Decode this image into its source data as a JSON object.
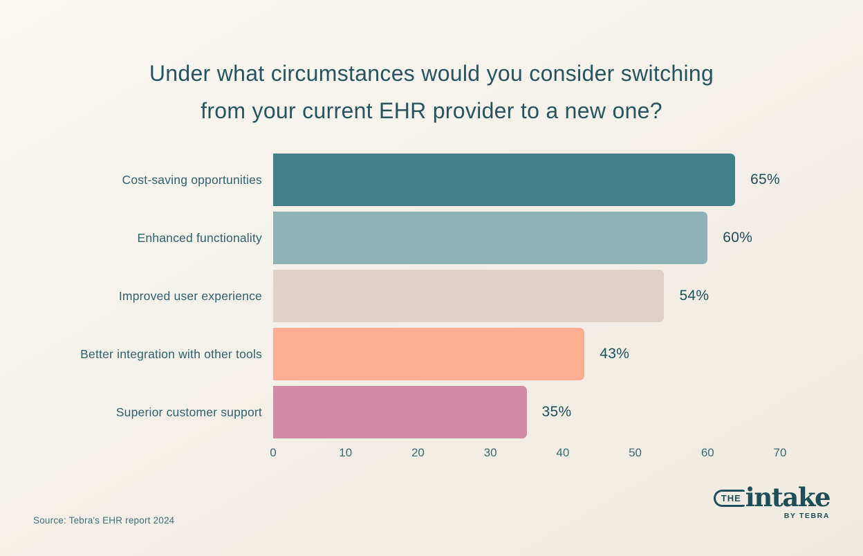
{
  "title": {
    "line1": "Under what circumstances would you consider switching",
    "line2": "from your current EHR provider to a new one?"
  },
  "chart_data": {
    "type": "bar",
    "orientation": "horizontal",
    "title": "Under what circumstances would you consider switching from your current EHR provider to a new one?",
    "categories": [
      "Cost-saving opportunities",
      "Enhanced functionality",
      "Improved user experience",
      "Better integration with other tools",
      "Superior customer support"
    ],
    "values": [
      65,
      60,
      54,
      43,
      35
    ],
    "value_labels": [
      "65%",
      "60%",
      "54%",
      "43%",
      "35%"
    ],
    "bar_colors": [
      "#418086",
      "#8fb3b6",
      "#ded3c7",
      "#ffae93",
      "#d18ba7"
    ],
    "xlabel": "",
    "ylabel": "",
    "xlim": [
      0,
      70
    ],
    "x_ticks": [
      "0",
      "10",
      "20",
      "30",
      "40",
      "50",
      "60",
      "70"
    ],
    "grid": false,
    "legend": false
  },
  "source": "Source: Tebra's EHR report 2024",
  "logo": {
    "the": "THE",
    "name": "intake",
    "byline": "BY TEBRA"
  },
  "colors": {
    "background": "#f3efe8",
    "title_text": "#27545e",
    "category_text": "#30616c",
    "value_text": "#1d4f59",
    "tick_text": "#3a6b75",
    "logo": "#1d4d57"
  }
}
